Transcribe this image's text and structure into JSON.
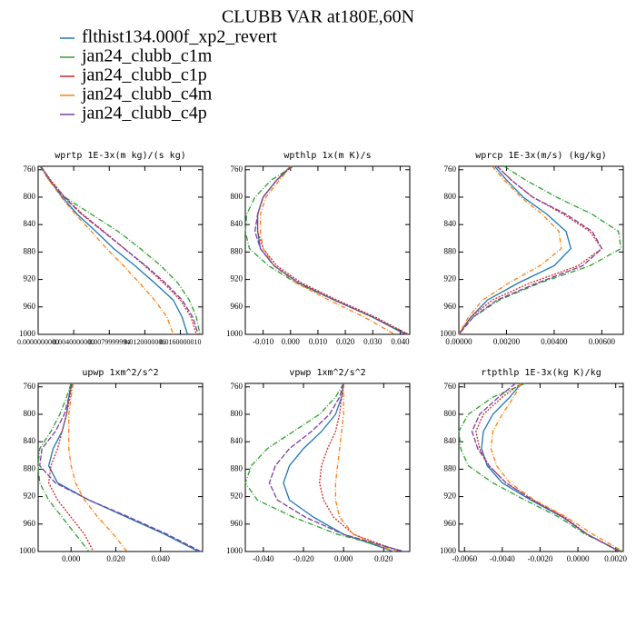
{
  "title": "CLUBB VAR at180E,60N",
  "chart_data": [
    {
      "type": "line",
      "title": "wprtp  1E-3x(m kg)/(s kg)",
      "y": [
        755,
        775,
        800,
        825,
        850,
        875,
        900,
        925,
        950,
        975,
        1000
      ],
      "ylim": [
        1000,
        755
      ],
      "yticks": [
        760,
        800,
        840,
        880,
        920,
        960,
        1000
      ],
      "xlim": [
        0,
        0.0185
      ],
      "xticks": [
        {
          "value": 0,
          "label": "0.0000000000"
        },
        {
          "value": 0.004,
          "label": "0.0040000000"
        },
        {
          "value": 0.008,
          "label": "0.0079999994"
        },
        {
          "value": 0.012,
          "label": "0.0120000006"
        },
        {
          "value": 0.016,
          "label": "0.0160000010"
        }
      ],
      "series": [
        {
          "name": "flthist134.000f_xp2_revert",
          "color": "#1f77b4",
          "dash": "none",
          "values": [
            0.0003,
            0.0013,
            0.0027,
            0.0044,
            0.0065,
            0.0085,
            0.0109,
            0.0131,
            0.0152,
            0.0162,
            0.0168
          ]
        },
        {
          "name": "jan24_clubb_c1m",
          "color": "#2ca02c",
          "dash": "6,2,1,2",
          "values": [
            0.0002,
            0.0012,
            0.003,
            0.006,
            0.009,
            0.0115,
            0.0138,
            0.0157,
            0.017,
            0.0178,
            0.0182
          ]
        },
        {
          "name": "jan24_clubb_c1p",
          "color": "#d62728",
          "dash": "2,1.5",
          "values": [
            0.0003,
            0.0014,
            0.003,
            0.005,
            0.0074,
            0.0097,
            0.012,
            0.0141,
            0.016,
            0.0172,
            0.0178
          ]
        },
        {
          "name": "jan24_clubb_c4m",
          "color": "#ff7f0e",
          "dash": "5,2,1,2",
          "values": [
            0.0003,
            0.0012,
            0.0026,
            0.0042,
            0.006,
            0.0077,
            0.0096,
            0.0114,
            0.0131,
            0.0145,
            0.0152
          ]
        },
        {
          "name": "jan24_clubb_c4p",
          "color": "#7b3f9e",
          "dash": "6,2",
          "values": [
            0.0003,
            0.0013,
            0.0029,
            0.0049,
            0.0073,
            0.0097,
            0.0121,
            0.0143,
            0.0162,
            0.0174,
            0.018
          ]
        }
      ]
    },
    {
      "type": "line",
      "title": "wpthlp  1x(m K)/s",
      "y": [
        755,
        775,
        800,
        825,
        850,
        875,
        900,
        925,
        950,
        975,
        1000
      ],
      "ylim": [
        1000,
        755
      ],
      "yticks": [
        760,
        800,
        840,
        880,
        920,
        960,
        1000
      ],
      "xlim": [
        -0.0165,
        0.0435
      ],
      "xticks": [
        {
          "value": -0.01,
          "label": "-0.010"
        },
        {
          "value": 0,
          "label": "0.000"
        },
        {
          "value": 0.01,
          "label": "0.010"
        },
        {
          "value": 0.02,
          "label": "0.020"
        },
        {
          "value": 0.03,
          "label": "0.030"
        },
        {
          "value": 0.04,
          "label": "0.040"
        }
      ],
      "series": [
        {
          "name": "flthist134.000f_xp2_revert",
          "color": "#1f77b4",
          "dash": "none",
          "values": [
            0,
            -0.005,
            -0.01,
            -0.012,
            -0.012,
            -0.011,
            -0.006,
            0.003,
            0.016,
            0.03,
            0.042
          ]
        },
        {
          "name": "jan24_clubb_c1m",
          "color": "#2ca02c",
          "dash": "6,2,1,2",
          "values": [
            0.001,
            -0.007,
            -0.013,
            -0.016,
            -0.0165,
            -0.015,
            -0.008,
            0.002,
            0.016,
            0.03,
            0.043
          ]
        },
        {
          "name": "jan24_clubb_c1p",
          "color": "#d62728",
          "dash": "2,1.5",
          "values": [
            0.0005,
            -0.005,
            -0.01,
            -0.012,
            -0.012,
            -0.01,
            -0.005,
            0.004,
            0.017,
            0.031,
            0.043
          ]
        },
        {
          "name": "jan24_clubb_c4m",
          "color": "#ff7f0e",
          "dash": "5,2,1,2",
          "values": [
            0,
            -0.004,
            -0.009,
            -0.011,
            -0.011,
            -0.01,
            -0.006,
            0.002,
            0.014,
            0.027,
            0.038
          ]
        },
        {
          "name": "jan24_clubb_c4p",
          "color": "#7b3f9e",
          "dash": "6,2",
          "values": [
            0.0005,
            -0.005,
            -0.01,
            -0.012,
            -0.013,
            -0.011,
            -0.006,
            0.003,
            0.016,
            0.03,
            0.042
          ]
        }
      ]
    },
    {
      "type": "line",
      "title": "wprcp  1E-3x(m/s) (kg/kg)",
      "y": [
        755,
        775,
        800,
        825,
        850,
        875,
        900,
        925,
        950,
        975,
        1000
      ],
      "ylim": [
        1000,
        755
      ],
      "yticks": [
        760,
        800,
        840,
        880,
        920,
        960,
        1000
      ],
      "xlim": [
        0,
        0.0069
      ],
      "xticks": [
        {
          "value": 0,
          "label": "0.00000"
        },
        {
          "value": 0.002,
          "label": "0.00200"
        },
        {
          "value": 0.004,
          "label": "0.00400"
        },
        {
          "value": 0.006,
          "label": "0.00600"
        }
      ],
      "series": [
        {
          "name": "flthist134.000f_xp2_revert",
          "color": "#1f77b4",
          "dash": "none",
          "values": [
            0.0015,
            0.002,
            0.0027,
            0.0037,
            0.0045,
            0.0047,
            0.004,
            0.0025,
            0.0012,
            0.0005,
            0
          ]
        },
        {
          "name": "jan24_clubb_c1m",
          "color": "#2ca02c",
          "dash": "6,2,1,2",
          "values": [
            0.0019,
            0.0028,
            0.0041,
            0.0056,
            0.0067,
            0.0068,
            0.0055,
            0.0034,
            0.0017,
            0.0006,
            0
          ]
        },
        {
          "name": "jan24_clubb_c1p",
          "color": "#d62728",
          "dash": "2,1.5",
          "values": [
            0.0016,
            0.0022,
            0.0031,
            0.0044,
            0.0055,
            0.006,
            0.005,
            0.003,
            0.0014,
            0.0005,
            0
          ]
        },
        {
          "name": "jan24_clubb_c4m",
          "color": "#ff7f0e",
          "dash": "5,2,1,2",
          "values": [
            0.0014,
            0.0019,
            0.0026,
            0.0035,
            0.0042,
            0.0043,
            0.0034,
            0.0021,
            0.001,
            0.0004,
            0
          ]
        },
        {
          "name": "jan24_clubb_c4p",
          "color": "#7b3f9e",
          "dash": "6,2",
          "values": [
            0.0016,
            0.0022,
            0.0031,
            0.0045,
            0.0056,
            0.006,
            0.0052,
            0.0033,
            0.0016,
            0.0006,
            0
          ]
        }
      ]
    },
    {
      "type": "line",
      "title": "upwp  1xm^2/s^2",
      "y": [
        755,
        775,
        800,
        825,
        850,
        875,
        900,
        925,
        950,
        975,
        1000
      ],
      "ylim": [
        1000,
        755
      ],
      "yticks": [
        760,
        800,
        840,
        880,
        920,
        960,
        1000
      ],
      "xlim": [
        -0.0147,
        0.0588
      ],
      "xticks": [
        {
          "value": 0,
          "label": "0.000"
        },
        {
          "value": 0.02,
          "label": "0.020"
        },
        {
          "value": 0.04,
          "label": "0.040"
        }
      ],
      "series": [
        {
          "name": "flthist134.000f_xp2_revert",
          "color": "#1f77b4",
          "dash": "none",
          "values": [
            0,
            -0.001,
            -0.002,
            -0.004,
            -0.008,
            -0.01,
            -0.006,
            0.008,
            0.025,
            0.042,
            0.057
          ]
        },
        {
          "name": "jan24_clubb_c1m",
          "color": "#2ca02c",
          "dash": "6,2,1,2",
          "values": [
            0,
            -0.002,
            -0.005,
            -0.009,
            -0.014,
            -0.0147,
            -0.014,
            -0.01,
            -0.004,
            0.002,
            0.008
          ]
        },
        {
          "name": "jan24_clubb_c1p",
          "color": "#d62728",
          "dash": "2,1.5",
          "values": [
            0.0005,
            -0.0005,
            -0.002,
            -0.004,
            -0.006,
            -0.009,
            -0.01,
            -0.006,
            0,
            0.006,
            0.01
          ]
        },
        {
          "name": "jan24_clubb_c4m",
          "color": "#ff7f0e",
          "dash": "5,2,1,2",
          "values": [
            0.001,
            0,
            -0.001,
            -0.001,
            -0.001,
            0,
            0.002,
            0.006,
            0.012,
            0.019,
            0.025
          ]
        },
        {
          "name": "jan24_clubb_c4p",
          "color": "#7b3f9e",
          "dash": "6,2",
          "values": [
            0.0005,
            -0.001,
            -0.003,
            -0.007,
            -0.013,
            -0.014,
            -0.007,
            0.008,
            0.026,
            0.043,
            0.058
          ]
        }
      ]
    },
    {
      "type": "line",
      "title": "vpwp  1xm^2/s^2",
      "y": [
        755,
        775,
        800,
        825,
        850,
        875,
        900,
        925,
        950,
        975,
        1000
      ],
      "ylim": [
        1000,
        755
      ],
      "yticks": [
        760,
        800,
        840,
        880,
        920,
        960,
        1000
      ],
      "xlim": [
        -0.049,
        0.033
      ],
      "xticks": [
        {
          "value": -0.04,
          "label": "-0.040"
        },
        {
          "value": -0.02,
          "label": "-0.020"
        },
        {
          "value": 0,
          "label": "0.000"
        },
        {
          "value": 0.02,
          "label": "0.020"
        }
      ],
      "series": [
        {
          "name": "flthist134.000f_xp2_revert",
          "color": "#1f77b4",
          "dash": "none",
          "values": [
            0,
            -0.001,
            -0.004,
            -0.011,
            -0.02,
            -0.027,
            -0.03,
            -0.027,
            -0.015,
            0,
            0.025
          ]
        },
        {
          "name": "jan24_clubb_c1m",
          "color": "#2ca02c",
          "dash": "6,2,1,2",
          "values": [
            0,
            -0.004,
            -0.012,
            -0.025,
            -0.038,
            -0.046,
            -0.049,
            -0.043,
            -0.025,
            -0.003,
            0.03
          ]
        },
        {
          "name": "jan24_clubb_c1p",
          "color": "#d62728",
          "dash": "2,1.5",
          "values": [
            0,
            -0.001,
            -0.002,
            -0.004,
            -0.008,
            -0.011,
            -0.012,
            -0.01,
            -0.005,
            0.005,
            0.028
          ]
        },
        {
          "name": "jan24_clubb_c4m",
          "color": "#ff7f0e",
          "dash": "5,2,1,2",
          "values": [
            0,
            0,
            0,
            -0.001,
            -0.002,
            -0.003,
            -0.004,
            -0.004,
            -0.002,
            0.005,
            0.025
          ]
        },
        {
          "name": "jan24_clubb_c4p",
          "color": "#7b3f9e",
          "dash": "6,2",
          "values": [
            0,
            -0.002,
            -0.007,
            -0.016,
            -0.027,
            -0.034,
            -0.037,
            -0.033,
            -0.019,
            0,
            0.03
          ]
        }
      ]
    },
    {
      "type": "line",
      "title": "rtpthlp  1E-3x(kg K)/kg",
      "y": [
        755,
        775,
        800,
        825,
        850,
        875,
        900,
        925,
        950,
        975,
        1000
      ],
      "ylim": [
        1000,
        755
      ],
      "yticks": [
        760,
        800,
        840,
        880,
        920,
        960,
        1000
      ],
      "xlim": [
        -0.0063,
        0.0024
      ],
      "xticks": [
        {
          "value": -0.006,
          "label": "-0.0060"
        },
        {
          "value": -0.004,
          "label": "-0.0040"
        },
        {
          "value": -0.002,
          "label": "-0.0020"
        },
        {
          "value": 0,
          "label": "0.0000"
        },
        {
          "value": 0.002,
          "label": "0.0020"
        }
      ],
      "series": [
        {
          "name": "flthist134.000f_xp2_revert",
          "color": "#1f77b4",
          "dash": "none",
          "values": [
            -0.003,
            -0.0036,
            -0.0045,
            -0.005,
            -0.0051,
            -0.0048,
            -0.004,
            -0.0025,
            -0.0008,
            0.0005,
            0.0022
          ]
        },
        {
          "name": "jan24_clubb_c1m",
          "color": "#2ca02c",
          "dash": "6,2,1,2",
          "values": [
            -0.0028,
            -0.0045,
            -0.0058,
            -0.0063,
            -0.0062,
            -0.0058,
            -0.0045,
            -0.0028,
            -0.001,
            0.0004,
            0.0023
          ]
        },
        {
          "name": "jan24_clubb_c1p",
          "color": "#d62728",
          "dash": "2,1.5",
          "values": [
            -0.003,
            -0.004,
            -0.005,
            -0.0054,
            -0.0052,
            -0.0047,
            -0.0038,
            -0.0024,
            -0.0007,
            0.0005,
            0.0022
          ]
        },
        {
          "name": "jan24_clubb_c4m",
          "color": "#ff7f0e",
          "dash": "5,2,1,2",
          "values": [
            -0.003,
            -0.0034,
            -0.004,
            -0.0045,
            -0.0046,
            -0.0043,
            -0.0036,
            -0.0023,
            -0.0006,
            0.0008,
            0.0024
          ]
        },
        {
          "name": "jan24_clubb_c4p",
          "color": "#7b3f9e",
          "dash": "6,2",
          "values": [
            -0.0033,
            -0.0042,
            -0.0052,
            -0.0056,
            -0.0053,
            -0.0047,
            -0.0038,
            -0.0024,
            -0.0008,
            0.0005,
            0.0022
          ]
        }
      ]
    }
  ]
}
